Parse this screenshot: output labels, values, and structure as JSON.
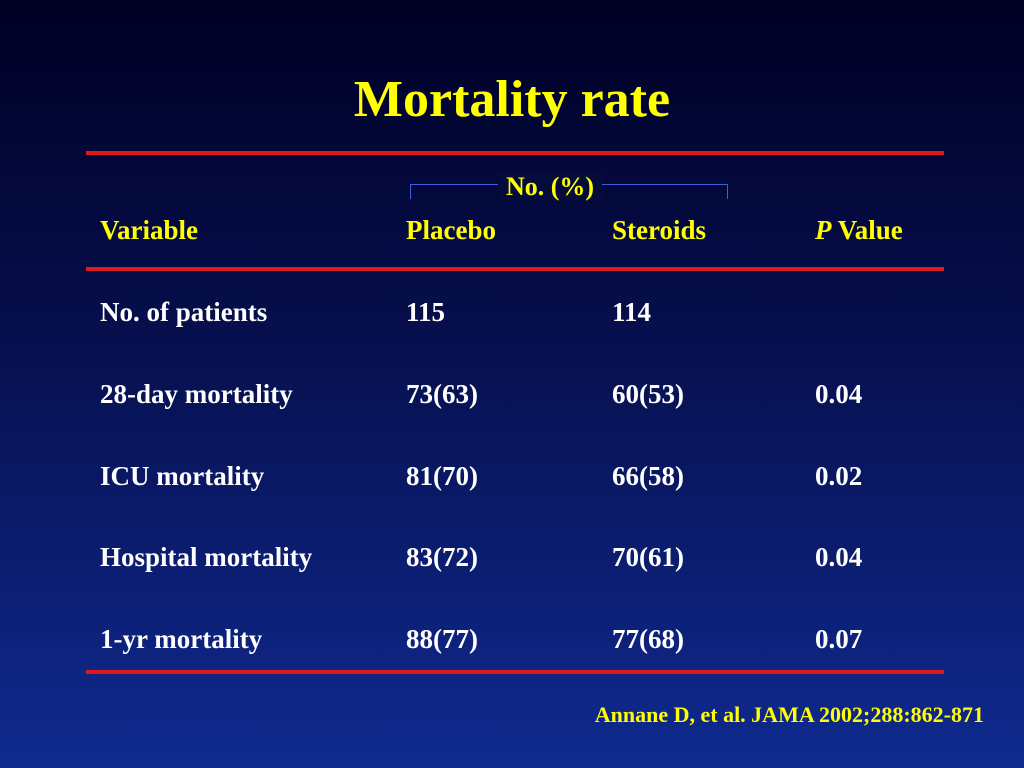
{
  "title": "Mortality rate",
  "colors": {
    "accent_yellow": "#ffff00",
    "rule_red": "#e0191e",
    "text_white": "#ffffff"
  },
  "table": {
    "group_header": "No. (%)",
    "columns": {
      "variable": "Variable",
      "placebo": "Placebo",
      "steroids": "Steroids",
      "p_italic": "P",
      "p_rest": " Value"
    },
    "rows": [
      {
        "variable": "No. of patients",
        "placebo": "115",
        "steroids": "114",
        "p": ""
      },
      {
        "variable": "28-day mortality",
        "placebo": "73(63)",
        "steroids": "60(53)",
        "p": "0.04"
      },
      {
        "variable": "ICU mortality",
        "placebo": "81(70)",
        "steroids": "66(58)",
        "p": "0.02"
      },
      {
        "variable": "Hospital mortality",
        "placebo": "83(72)",
        "steroids": "70(61)",
        "p": "0.04"
      },
      {
        "variable": "1-yr mortality",
        "placebo": "88(77)",
        "steroids": "77(68)",
        "p": "0.07"
      }
    ]
  },
  "citation": "Annane D, et al. JAMA 2002;288:862-871"
}
